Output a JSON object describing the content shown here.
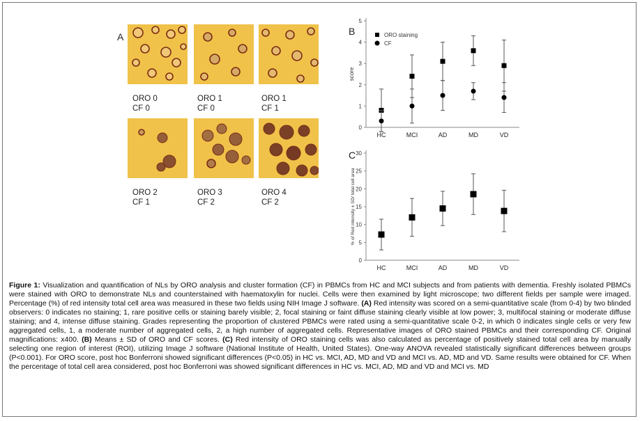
{
  "panel_a": {
    "letter": "A",
    "images": [
      {
        "line1": "ORO 0",
        "line2": "CF 0"
      },
      {
        "line1": "ORO 1",
        "line2": "CF 0"
      },
      {
        "line1": "ORO 1",
        "line2": "CF 1"
      },
      {
        "line1": "ORO 2",
        "line2": "CF 1"
      },
      {
        "line1": "ORO 3",
        "line2": "CF 2"
      },
      {
        "line1": "ORO 4",
        "line2": "CF 2"
      }
    ]
  },
  "colors": {
    "background": "#ffffff",
    "marker": "#000000",
    "errorbar": "#555555",
    "micro_bg": "#f0c24a",
    "cell_ring": "#7a2c12"
  },
  "chart_data": [
    {
      "panel": "B",
      "type": "scatter",
      "categories": [
        "HC",
        "MCI",
        "AD",
        "MD",
        "VD"
      ],
      "ylabel": "score",
      "ylim": [
        0,
        5
      ],
      "yticks": [
        0,
        1,
        2,
        3,
        4,
        5
      ],
      "grid": false,
      "legend_position": "top-left",
      "series": [
        {
          "name": "ORO staining",
          "marker": "square",
          "values": [
            0.8,
            2.4,
            3.1,
            3.6,
            2.9
          ],
          "sd": [
            1.0,
            1.0,
            0.9,
            0.7,
            1.2
          ]
        },
        {
          "name": "CF",
          "marker": "circle",
          "values": [
            0.3,
            1.0,
            1.5,
            1.7,
            1.4
          ],
          "sd": [
            0.5,
            0.8,
            0.7,
            0.4,
            0.7
          ]
        }
      ]
    },
    {
      "panel": "C",
      "type": "scatter",
      "categories": [
        "HC",
        "MCI",
        "AD",
        "MD",
        "VD"
      ],
      "ylabel": "% of Red intensity ± SD/ total cell area",
      "ylim": [
        0,
        30
      ],
      "yticks": [
        0,
        5,
        10,
        15,
        20,
        25,
        30
      ],
      "grid": false,
      "series": [
        {
          "marker": "square",
          "values": [
            7.2,
            12.0,
            14.5,
            18.5,
            13.8
          ],
          "sd": [
            4.3,
            5.3,
            4.8,
            5.7,
            5.8
          ]
        }
      ]
    }
  ],
  "caption": {
    "label": "Figure 1:",
    "p1": " Visualization and quantification of NLs by ORO analysis and cluster formation (CF) in PBMCs from HC and MCI subjects and from patients with dementia. Freshly isolated PBMCs were stained with ORO to demonstrate NLs and counterstained with haematoxylin for nuclei. Cells were then examined by light microscope; two different fields per sample were imaged. Percentage (%) of red intensity total cell area was measured in these two fields using NIH Image J software. ",
    "a": "(A)",
    "p2": " Red intensity was scored on a semi-quantitative scale (from 0-4) by two blinded observers: 0 indicates no staining; 1, rare positive cells or staining barely visible; 2, focal staining or faint diffuse staining clearly visible at low power; 3, multifocal staining or moderate diffuse staining; and 4, intense diffuse staining. Grades representing the proportion of clustered PBMCs were rated using a semi-quantitative scale 0-2, in which 0 indicates single cells or very few aggregated cells, 1, a moderate number of aggregated cells, 2, a high number of aggregated cells. Representative images of ORO stained PBMCs and their corresponding CF. Original magnifications: x400. ",
    "b": "(B)",
    "p3": " Means ± SD of ORO and CF scores. ",
    "c": "(C)",
    "p4": " Red intensity of ORO staining cells was also calculated as percentage of positively stained total cell area by manually selecting one region of interest (ROI), utilizing Image J software (National Institute of Health, United States). One-way ANOVA revealed statistically significant differences between groups (P<0.001). For ORO score, post hoc Bonferroni showed significant differences (P<0.05) in HC vs. MCI, AD, MD and VD and MCI vs. AD, MD and VD. Same results were obtained for CF. When the percentage of total cell area considered, post hoc Bonferroni was showed significant differences in HC vs. MCI, AD, MD and VD and MCI vs. MD"
  }
}
